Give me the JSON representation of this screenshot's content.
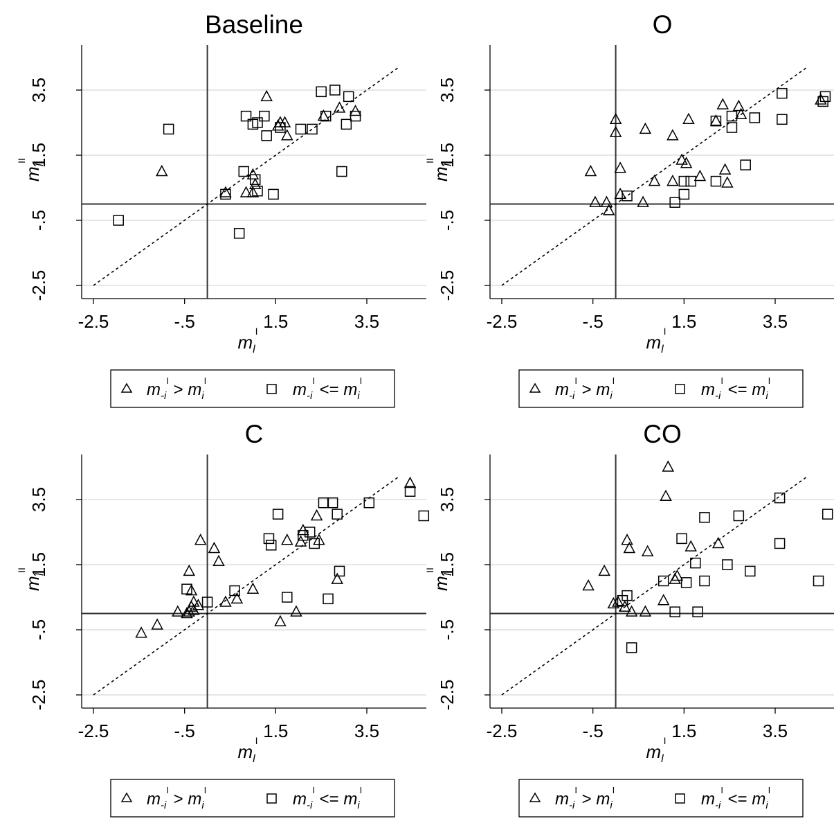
{
  "shared": {
    "axis_ticks": [
      "-2.5",
      "-.5",
      "1.5",
      "3.5"
    ],
    "tick_values": [
      -2.5,
      -0.5,
      1.5,
      3.5
    ],
    "x_axis_label": "m",
    "x_axis_label_sub": "l",
    "x_axis_label_sup": "I",
    "y_axis_label": "m",
    "y_axis_label_sub": "I",
    "y_axis_label_sup": "II",
    "legend": {
      "triangle": {
        "base": "m",
        "sub": "-i",
        "sup": "I",
        "op": " > ",
        "base2": "m",
        "sub2": "i",
        "sup2": "I"
      },
      "square": {
        "base": "m",
        "sub": "-i",
        "sup": "I",
        "op": " <= ",
        "base2": "m",
        "sub2": "i",
        "sup2": "I"
      }
    },
    "colors": {
      "marker": "#000000",
      "gridline": "#e6e6e6",
      "refline": "#333333"
    }
  },
  "chart_data": [
    {
      "type": "scatter",
      "title": "Baseline",
      "xlim": [
        -2.9,
        4.6
      ],
      "ylim": [
        -2.9,
        4.7
      ],
      "series": [
        {
          "name": "m-i > mi",
          "marker": "triangle",
          "points": [
            [
              -1.0,
              1.0
            ],
            [
              0.4,
              0.35
            ],
            [
              0.85,
              0.35
            ],
            [
              1.0,
              0.35
            ],
            [
              1.05,
              0.6
            ],
            [
              1.0,
              0.9
            ],
            [
              1.3,
              3.3
            ],
            [
              1.55,
              2.4
            ],
            [
              1.6,
              2.5
            ],
            [
              1.7,
              2.5
            ],
            [
              1.75,
              2.1
            ],
            [
              2.55,
              2.7
            ],
            [
              2.9,
              2.95
            ],
            [
              3.25,
              2.85
            ]
          ]
        },
        {
          "name": "m-i <= mi",
          "marker": "square",
          "points": [
            [
              -1.95,
              -0.5
            ],
            [
              -0.85,
              2.3
            ],
            [
              0.4,
              0.3
            ],
            [
              0.7,
              -0.9
            ],
            [
              0.8,
              1.0
            ],
            [
              0.85,
              2.7
            ],
            [
              1.0,
              2.45
            ],
            [
              1.05,
              0.75
            ],
            [
              1.1,
              0.4
            ],
            [
              1.1,
              2.5
            ],
            [
              1.25,
              2.7
            ],
            [
              1.3,
              2.1
            ],
            [
              1.45,
              0.3
            ],
            [
              1.6,
              2.35
            ],
            [
              2.05,
              2.3
            ],
            [
              2.3,
              2.3
            ],
            [
              2.5,
              3.45
            ],
            [
              2.6,
              2.7
            ],
            [
              2.8,
              3.5
            ],
            [
              2.95,
              1.0
            ],
            [
              3.05,
              2.45
            ],
            [
              3.1,
              3.3
            ],
            [
              3.25,
              2.7
            ]
          ]
        }
      ]
    },
    {
      "type": "scatter",
      "title": "O",
      "xlim": [
        -2.9,
        4.6
      ],
      "ylim": [
        -2.9,
        4.7
      ],
      "series": [
        {
          "name": "m-i > mi",
          "marker": "triangle",
          "points": [
            [
              -0.55,
              1.0
            ],
            [
              -0.45,
              0.05
            ],
            [
              -0.2,
              0.05
            ],
            [
              -0.15,
              -0.2
            ],
            [
              0.0,
              2.6
            ],
            [
              0.0,
              2.2
            ],
            [
              0.1,
              1.1
            ],
            [
              0.1,
              0.3
            ],
            [
              0.6,
              0.05
            ],
            [
              0.65,
              2.3
            ],
            [
              0.85,
              0.7
            ],
            [
              1.25,
              0.7
            ],
            [
              1.25,
              2.1
            ],
            [
              1.45,
              1.35
            ],
            [
              1.55,
              1.25
            ],
            [
              1.6,
              2.6
            ],
            [
              1.85,
              0.85
            ],
            [
              2.2,
              2.55
            ],
            [
              2.35,
              3.05
            ],
            [
              2.4,
              1.05
            ],
            [
              2.45,
              0.65
            ],
            [
              2.7,
              3.0
            ],
            [
              2.75,
              2.75
            ],
            [
              4.5,
              3.2
            ]
          ]
        },
        {
          "name": "m-i <= mi",
          "marker": "square",
          "points": [
            [
              0.25,
              0.25
            ],
            [
              1.3,
              0.05
            ],
            [
              1.5,
              0.3
            ],
            [
              1.5,
              0.7
            ],
            [
              1.65,
              0.7
            ],
            [
              2.2,
              0.7
            ],
            [
              2.2,
              2.55
            ],
            [
              2.55,
              2.35
            ],
            [
              2.55,
              2.7
            ],
            [
              2.85,
              1.2
            ],
            [
              3.05,
              2.65
            ],
            [
              3.65,
              3.4
            ],
            [
              3.65,
              2.6
            ],
            [
              4.55,
              3.15
            ],
            [
              4.6,
              3.3
            ]
          ]
        }
      ]
    },
    {
      "type": "scatter",
      "title": "C",
      "xlim": [
        -2.9,
        4.6
      ],
      "ylim": [
        -2.9,
        4.7
      ],
      "series": [
        {
          "name": "m-i > mi",
          "marker": "triangle",
          "points": [
            [
              -1.45,
              -0.6
            ],
            [
              -1.1,
              -0.35
            ],
            [
              -0.65,
              0.05
            ],
            [
              -0.45,
              0.0
            ],
            [
              -0.4,
              0.05
            ],
            [
              -0.35,
              0.2
            ],
            [
              -0.3,
              0.1
            ],
            [
              -0.2,
              0.25
            ],
            [
              -0.35,
              0.7
            ],
            [
              -0.4,
              1.3
            ],
            [
              -0.3,
              0.35
            ],
            [
              -0.15,
              2.25
            ],
            [
              0.15,
              2.0
            ],
            [
              0.25,
              1.6
            ],
            [
              0.4,
              0.35
            ],
            [
              0.65,
              0.45
            ],
            [
              1.0,
              0.75
            ],
            [
              1.6,
              -0.25
            ],
            [
              1.75,
              2.25
            ],
            [
              1.95,
              0.05
            ],
            [
              2.05,
              2.2
            ],
            [
              2.1,
              2.55
            ],
            [
              2.4,
              3.0
            ],
            [
              2.45,
              2.25
            ],
            [
              2.85,
              1.05
            ],
            [
              4.45,
              4.0
            ]
          ]
        },
        {
          "name": "m-i <= mi",
          "marker": "square",
          "points": [
            [
              -0.45,
              0.75
            ],
            [
              0.0,
              0.35
            ],
            [
              0.6,
              0.7
            ],
            [
              1.35,
              2.3
            ],
            [
              1.4,
              2.1
            ],
            [
              1.55,
              3.05
            ],
            [
              1.75,
              0.5
            ],
            [
              2.1,
              2.4
            ],
            [
              2.25,
              2.5
            ],
            [
              2.35,
              2.15
            ],
            [
              2.55,
              3.4
            ],
            [
              2.65,
              0.45
            ],
            [
              2.75,
              3.4
            ],
            [
              2.85,
              3.05
            ],
            [
              2.9,
              1.3
            ],
            [
              3.55,
              3.4
            ],
            [
              4.45,
              3.75
            ],
            [
              4.75,
              3.0
            ]
          ]
        }
      ]
    },
    {
      "type": "scatter",
      "title": "CO",
      "xlim": [
        -2.9,
        4.6
      ],
      "ylim": [
        -2.9,
        4.7
      ],
      "series": [
        {
          "name": "m-i > mi",
          "marker": "triangle",
          "points": [
            [
              -0.6,
              0.85
            ],
            [
              -0.25,
              1.3
            ],
            [
              -0.05,
              0.3
            ],
            [
              0.05,
              0.35
            ],
            [
              0.2,
              0.2
            ],
            [
              0.25,
              2.25
            ],
            [
              0.3,
              2.0
            ],
            [
              0.35,
              0.05
            ],
            [
              0.65,
              0.05
            ],
            [
              0.7,
              1.9
            ],
            [
              1.05,
              0.4
            ],
            [
              1.1,
              3.6
            ],
            [
              1.15,
              4.5
            ],
            [
              1.3,
              1.05
            ],
            [
              1.35,
              1.15
            ],
            [
              1.65,
              2.05
            ],
            [
              2.25,
              2.15
            ]
          ]
        },
        {
          "name": "m-i <= mi",
          "marker": "square",
          "points": [
            [
              0.15,
              0.4
            ],
            [
              0.25,
              0.55
            ],
            [
              0.35,
              -1.05
            ],
            [
              1.05,
              1.0
            ],
            [
              1.3,
              0.05
            ],
            [
              1.45,
              2.3
            ],
            [
              1.55,
              0.95
            ],
            [
              1.75,
              1.55
            ],
            [
              1.8,
              0.05
            ],
            [
              1.95,
              1.0
            ],
            [
              1.95,
              2.95
            ],
            [
              2.45,
              1.5
            ],
            [
              2.7,
              3.0
            ],
            [
              2.95,
              1.3
            ],
            [
              3.6,
              2.15
            ],
            [
              3.6,
              3.55
            ],
            [
              4.45,
              1.0
            ],
            [
              4.65,
              3.05
            ]
          ]
        }
      ]
    }
  ]
}
